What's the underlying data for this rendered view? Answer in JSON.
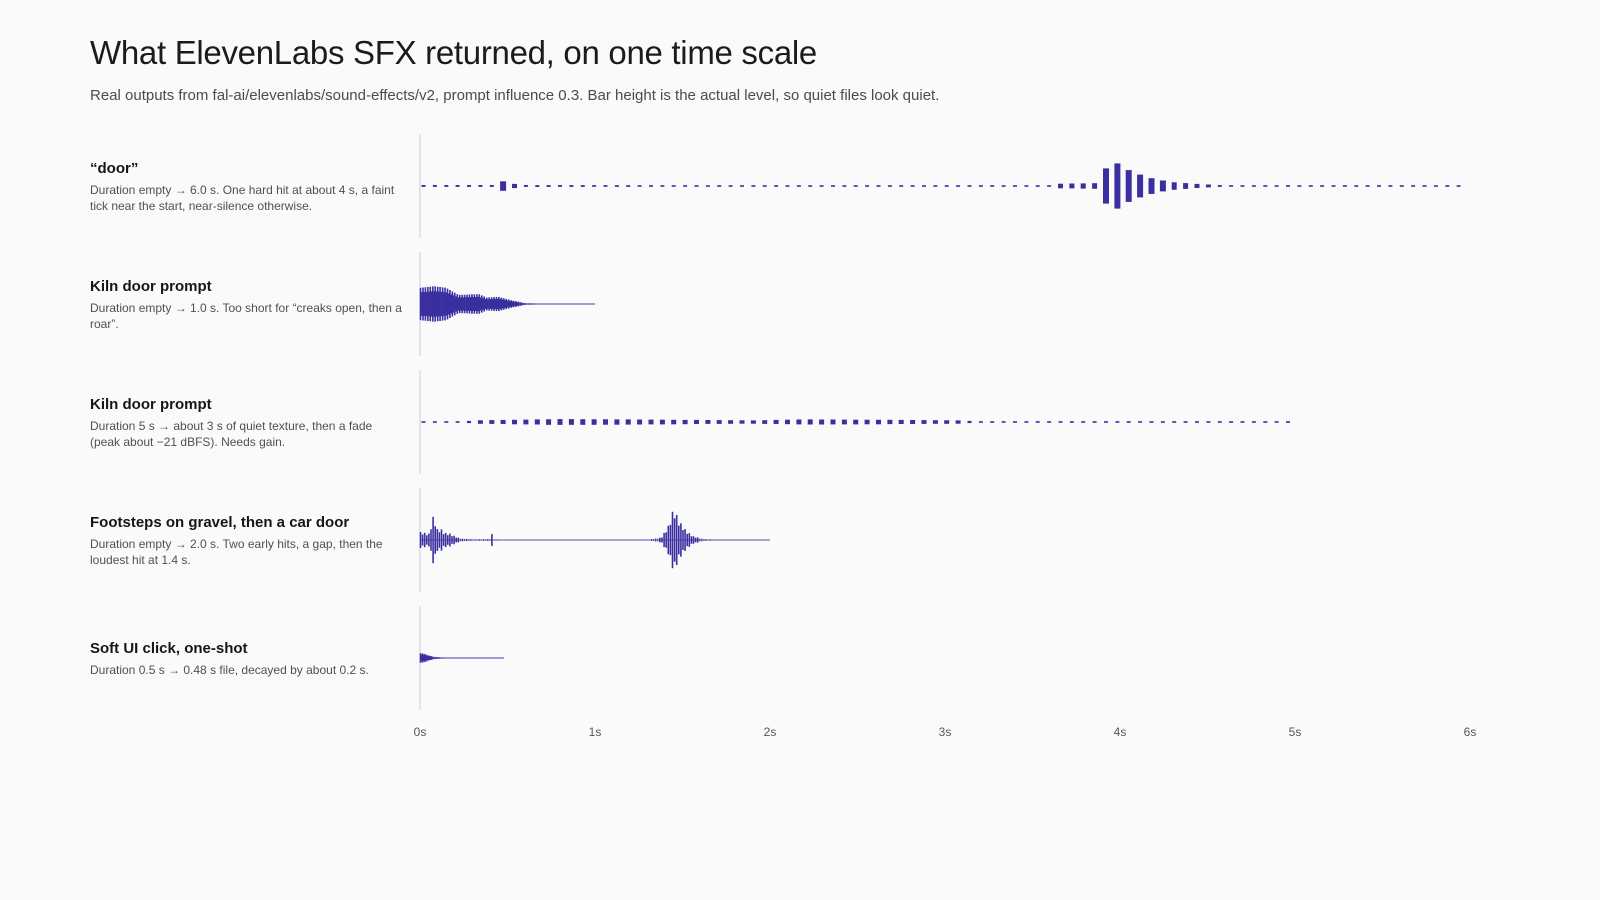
{
  "title": "What ElevenLabs SFX returned, on one time scale",
  "subtitle": "Real outputs from fal-ai/elevenlabs/sound-effects/v2, prompt influence 0.3. Bar height is the actual level, so quiet files look quiet.",
  "colors": {
    "wave": "#3a2fa0",
    "axis": "#cfcfd4",
    "tick_text": "#55555c",
    "background": "#fafafa"
  },
  "chart_data": {
    "type": "waveform",
    "x_ticks": [
      "0s",
      "1s",
      "2s",
      "3s",
      "4s",
      "5s",
      "6s"
    ],
    "xlim": [
      0,
      6
    ],
    "amplitude_range": [
      0,
      1
    ],
    "rows": [
      {
        "name": "“door”",
        "description": "Duration empty → 6.0 s. One hard hit at about 4 s, a faint tick near the start, near-silence otherwise.",
        "duration": 6.0,
        "style": "bars",
        "bar_step": 0.065,
        "floor": 0.01,
        "envelope": [
          [
            0.45,
            0.03
          ],
          [
            0.48,
            0.17
          ],
          [
            0.51,
            0.17
          ],
          [
            0.55,
            0.03
          ],
          [
            3.6,
            0.01
          ],
          [
            3.65,
            0.07
          ],
          [
            3.9,
            0.09
          ],
          [
            3.94,
            1.0
          ],
          [
            4.0,
            0.6
          ],
          [
            4.07,
            0.45
          ],
          [
            4.14,
            0.3
          ],
          [
            4.21,
            0.2
          ],
          [
            4.3,
            0.12
          ],
          [
            4.45,
            0.06
          ],
          [
            4.6,
            0.02
          ],
          [
            4.75,
            0.01
          ]
        ]
      },
      {
        "name": "Kiln door prompt",
        "description": "Duration empty → 1.0 s. Too short for “creaks open, then a roar”.",
        "duration": 1.0,
        "style": "lines",
        "bar_step": 0.007,
        "floor": 0.005,
        "envelope": [
          [
            0.0,
            0.5
          ],
          [
            0.08,
            0.55
          ],
          [
            0.15,
            0.5
          ],
          [
            0.22,
            0.28
          ],
          [
            0.3,
            0.3
          ],
          [
            0.34,
            0.3
          ],
          [
            0.38,
            0.2
          ],
          [
            0.45,
            0.22
          ],
          [
            0.52,
            0.12
          ],
          [
            0.6,
            0.03
          ],
          [
            0.7,
            0.01
          ],
          [
            1.0,
            0.005
          ]
        ]
      },
      {
        "name": "Kiln door prompt",
        "description": "Duration 5 s → about 3 s of quiet texture, then a fade (peak about −21 dBFS). Needs gain.",
        "duration": 5.0,
        "style": "bars",
        "bar_step": 0.065,
        "floor": 0.01,
        "envelope": [
          [
            0.0,
            0.01
          ],
          [
            0.25,
            0.01
          ],
          [
            0.3,
            0.05
          ],
          [
            0.8,
            0.09
          ],
          [
            1.2,
            0.08
          ],
          [
            1.9,
            0.05
          ],
          [
            2.2,
            0.08
          ],
          [
            2.6,
            0.07
          ],
          [
            3.1,
            0.05
          ],
          [
            3.2,
            0.01
          ],
          [
            5.0,
            0.01
          ]
        ]
      },
      {
        "name": "Footsteps on gravel, then a car door",
        "description": "Duration empty → 2.0 s. Two early hits, a gap, then the loudest hit at 1.4 s.",
        "duration": 2.0,
        "style": "lines",
        "bar_step": 0.012,
        "floor": 0.005,
        "envelope": [
          [
            0.0,
            0.25
          ],
          [
            0.03,
            0.22
          ],
          [
            0.05,
            0.18
          ],
          [
            0.078,
            0.78
          ],
          [
            0.1,
            0.32
          ],
          [
            0.12,
            0.35
          ],
          [
            0.14,
            0.22
          ],
          [
            0.17,
            0.2
          ],
          [
            0.2,
            0.12
          ],
          [
            0.23,
            0.05
          ],
          [
            0.3,
            0.02
          ],
          [
            0.4,
            0.03
          ],
          [
            0.41,
            0.2
          ],
          [
            0.42,
            0.02
          ],
          [
            0.6,
            0.005
          ],
          [
            1.3,
            0.005
          ],
          [
            1.38,
            0.08
          ],
          [
            1.42,
            0.45
          ],
          [
            1.45,
            1.0
          ],
          [
            1.48,
            0.6
          ],
          [
            1.52,
            0.3
          ],
          [
            1.56,
            0.12
          ],
          [
            1.62,
            0.03
          ],
          [
            1.7,
            0.01
          ],
          [
            2.0,
            0.005
          ]
        ]
      },
      {
        "name": "Soft UI click, one-shot",
        "description": "Duration 0.5 s → 0.48 s file, decayed by about 0.2 s.",
        "duration": 0.48,
        "style": "lines",
        "bar_step": 0.006,
        "floor": 0.005,
        "envelope": [
          [
            0.0,
            0.15
          ],
          [
            0.02,
            0.14
          ],
          [
            0.05,
            0.08
          ],
          [
            0.08,
            0.04
          ],
          [
            0.12,
            0.02
          ],
          [
            0.2,
            0.005
          ],
          [
            0.48,
            0.005
          ]
        ]
      }
    ]
  }
}
